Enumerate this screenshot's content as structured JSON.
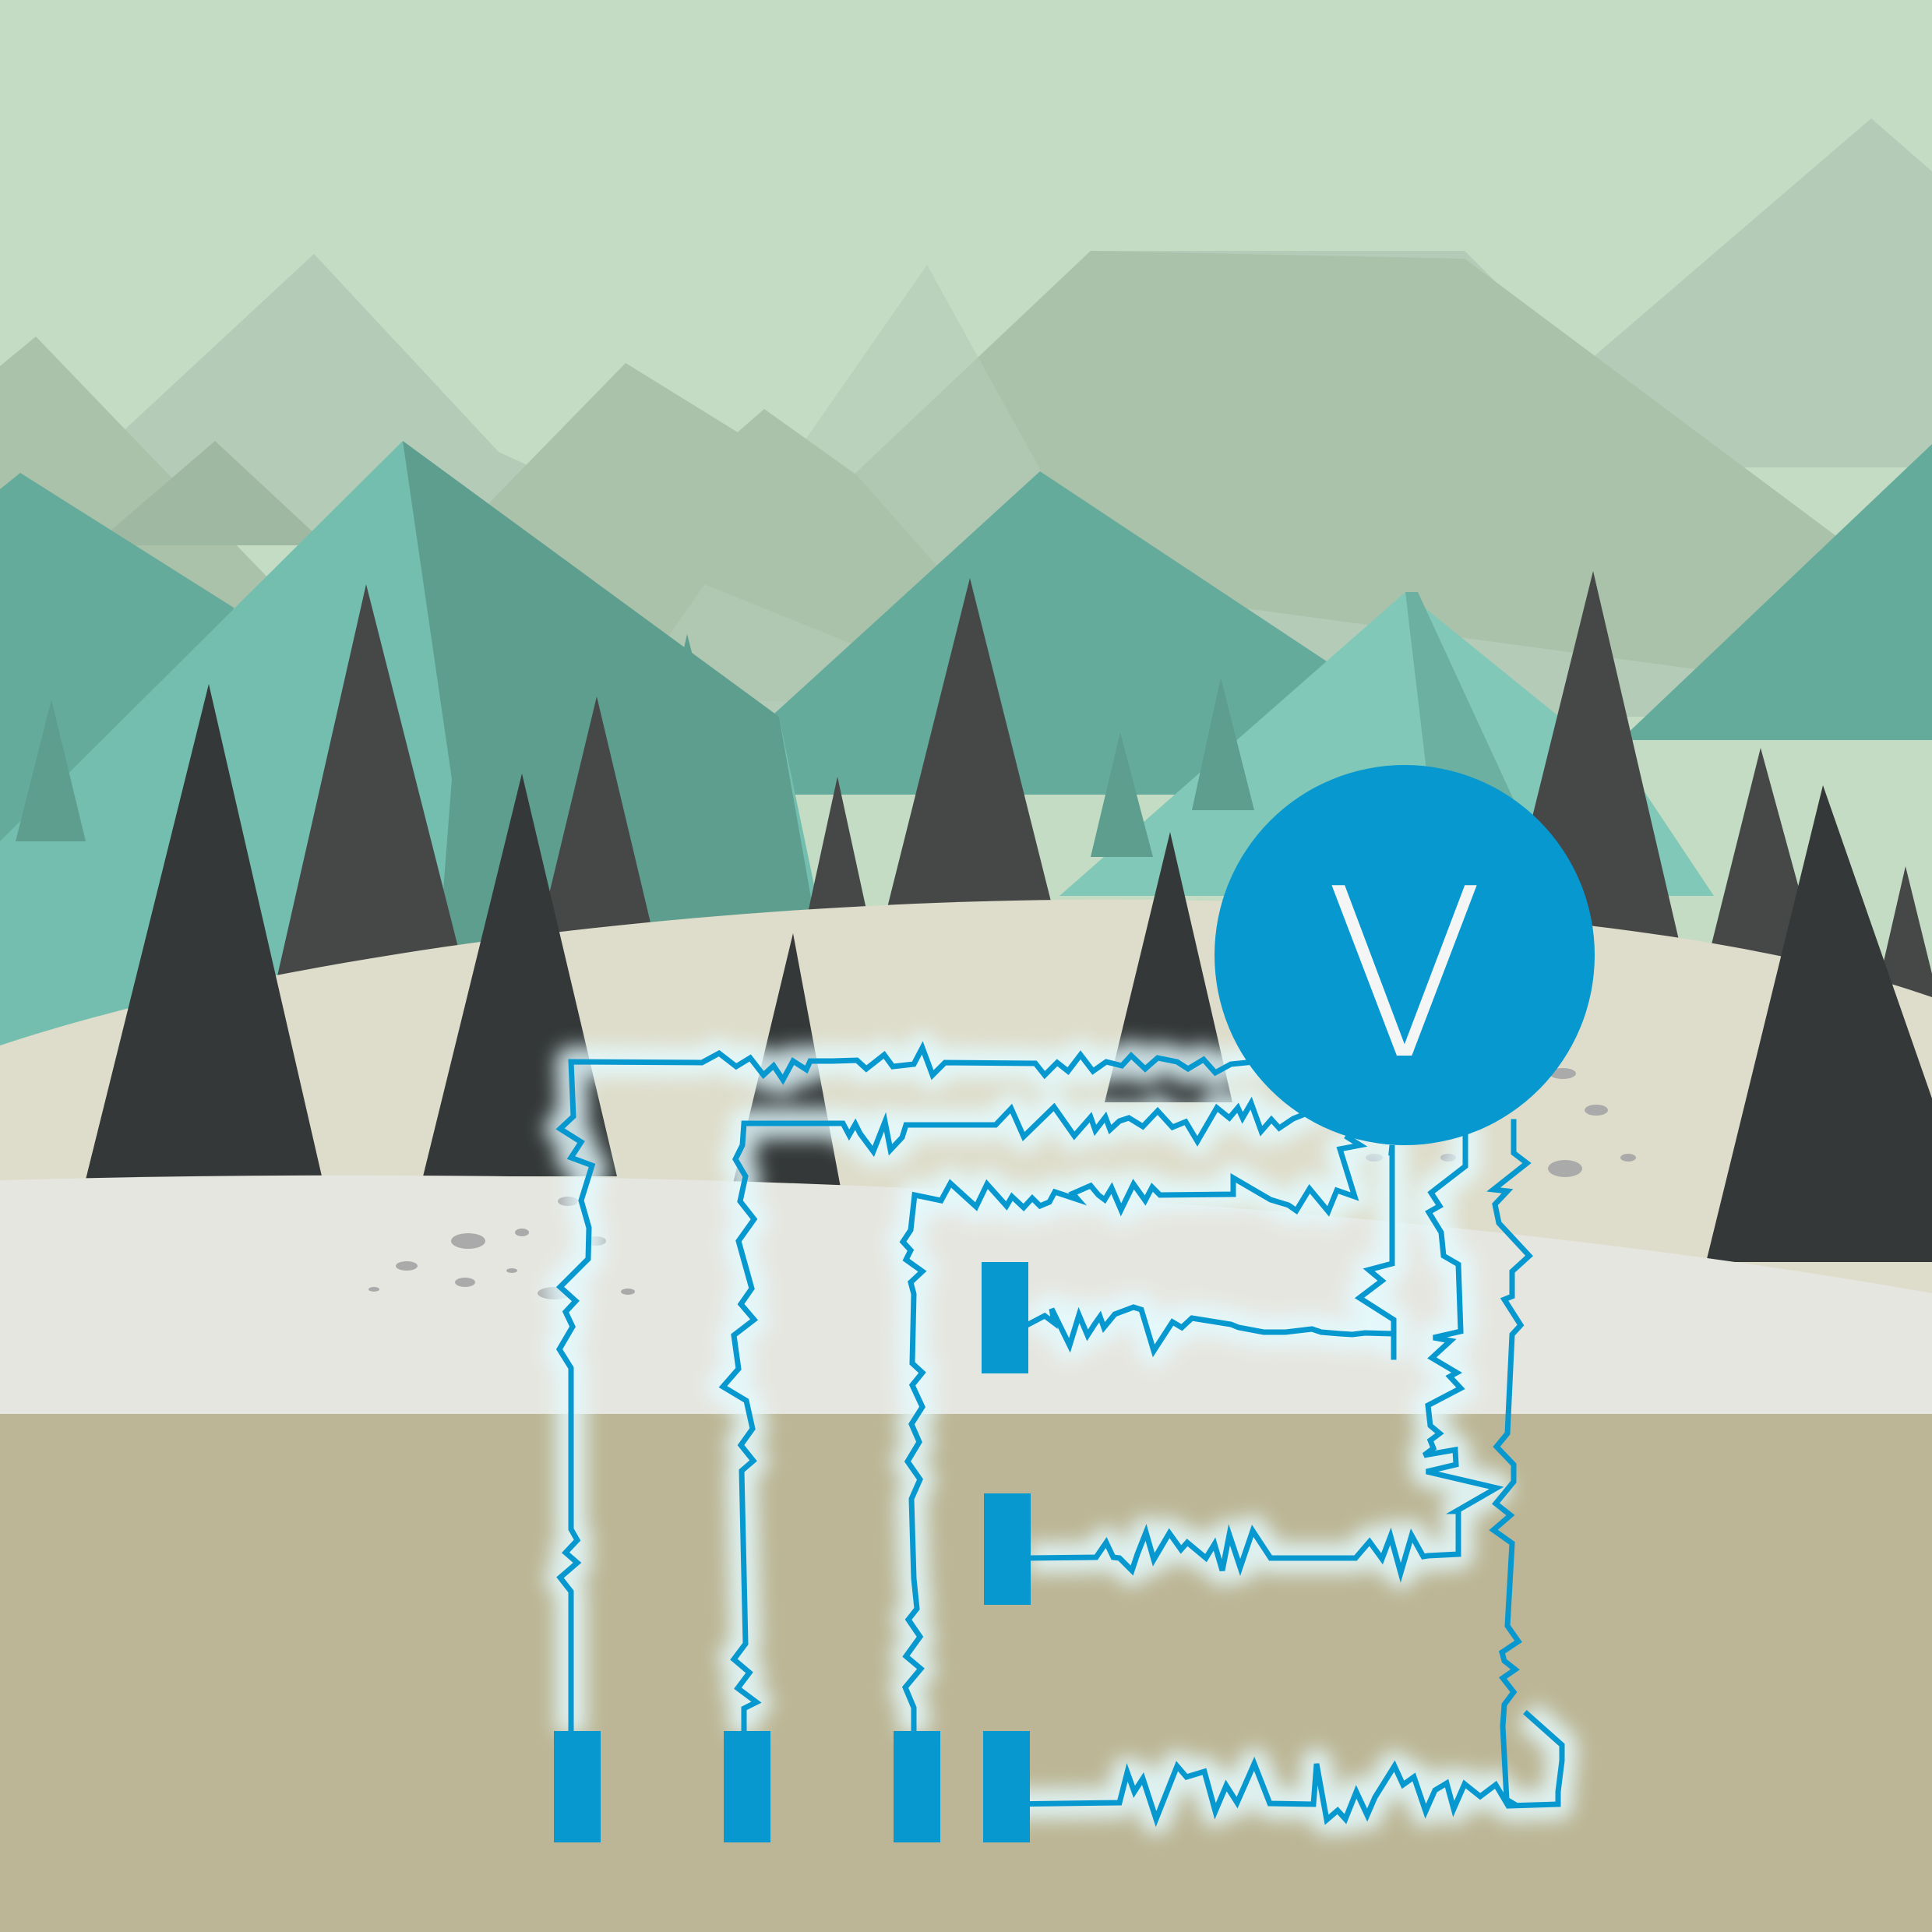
{
  "scene": {
    "meter_label": "V",
    "colors": {
      "sky": "#c4dbc4",
      "mountain_far": "#b4cbb8",
      "mountain_mid": "#aac1aa",
      "mountain_teal": "#65ab9b",
      "mountain_light_teal": "#73beae",
      "tree_dark": "#343838",
      "tree_gray": "#464848",
      "snow_back": "#dedcca",
      "snow_front": "#e6e6e0",
      "soil": "#bcb696",
      "wire": "#0898d0",
      "meter": "#0798d0",
      "meter_text": "#f4f6f6",
      "glow": "#e4fbff"
    }
  }
}
